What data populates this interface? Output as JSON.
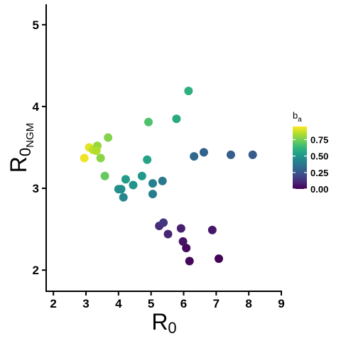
{
  "chart_data": {
    "type": "scatter",
    "xlim": [
      1.8,
      9.0
    ],
    "ylim": [
      1.75,
      5.25
    ],
    "x_ticks": [
      2,
      3,
      4,
      5,
      6,
      7,
      8,
      9
    ],
    "y_ticks": [
      2,
      3,
      4,
      5
    ],
    "x_tick_labels": [
      "2",
      "3",
      "4",
      "5",
      "6",
      "7",
      "8",
      "9"
    ],
    "y_tick_labels": [
      "2",
      "3",
      "4",
      "5"
    ],
    "xlabel": {
      "main": "R",
      "sub": "0"
    },
    "ylabel": {
      "main": "R",
      "sub": "0",
      "subsub": "NGM"
    },
    "grid": false,
    "color_scale": {
      "name": "viridis",
      "stops": [
        "#440154",
        "#482878",
        "#3e4a89",
        "#31688e",
        "#26828e",
        "#1f9e89",
        "#35b779",
        "#6ece58",
        "#b5de2b",
        "#fde725"
      ],
      "range": [
        0,
        0.95
      ]
    },
    "legend": {
      "title": {
        "main": "b",
        "sub": "a"
      },
      "position": "right",
      "ticks": [
        0.0,
        0.25,
        0.5,
        0.75
      ],
      "tick_labels": [
        "0.00",
        "0.25",
        "0.50",
        "0.75"
      ]
    },
    "points": [
      {
        "x": 2.95,
        "y": 3.37,
        "b": 0.93
      },
      {
        "x": 3.1,
        "y": 3.5,
        "b": 0.91
      },
      {
        "x": 3.22,
        "y": 3.47,
        "b": 0.86
      },
      {
        "x": 3.35,
        "y": 3.52,
        "b": 0.8
      },
      {
        "x": 3.32,
        "y": 3.46,
        "b": 0.84
      },
      {
        "x": 3.45,
        "y": 3.37,
        "b": 0.78
      },
      {
        "x": 3.58,
        "y": 3.15,
        "b": 0.72
      },
      {
        "x": 3.68,
        "y": 3.62,
        "b": 0.77
      },
      {
        "x": 4.0,
        "y": 2.99,
        "b": 0.48
      },
      {
        "x": 4.08,
        "y": 2.99,
        "b": 0.46
      },
      {
        "x": 4.15,
        "y": 2.89,
        "b": 0.44
      },
      {
        "x": 4.22,
        "y": 3.11,
        "b": 0.52
      },
      {
        "x": 4.45,
        "y": 3.04,
        "b": 0.49
      },
      {
        "x": 4.72,
        "y": 3.15,
        "b": 0.51
      },
      {
        "x": 4.88,
        "y": 3.35,
        "b": 0.55
      },
      {
        "x": 4.92,
        "y": 3.81,
        "b": 0.68
      },
      {
        "x": 5.05,
        "y": 3.06,
        "b": 0.42
      },
      {
        "x": 5.05,
        "y": 2.93,
        "b": 0.4
      },
      {
        "x": 5.35,
        "y": 3.09,
        "b": 0.38
      },
      {
        "x": 5.25,
        "y": 2.54,
        "b": 0.12
      },
      {
        "x": 5.38,
        "y": 2.58,
        "b": 0.15
      },
      {
        "x": 5.52,
        "y": 2.44,
        "b": 0.1
      },
      {
        "x": 5.78,
        "y": 3.85,
        "b": 0.58
      },
      {
        "x": 5.92,
        "y": 2.51,
        "b": 0.08
      },
      {
        "x": 5.98,
        "y": 2.35,
        "b": 0.05
      },
      {
        "x": 6.08,
        "y": 2.27,
        "b": 0.03
      },
      {
        "x": 6.18,
        "y": 2.11,
        "b": 0.02
      },
      {
        "x": 6.15,
        "y": 4.19,
        "b": 0.6
      },
      {
        "x": 6.32,
        "y": 3.39,
        "b": 0.32
      },
      {
        "x": 6.62,
        "y": 3.44,
        "b": 0.3
      },
      {
        "x": 6.88,
        "y": 2.49,
        "b": 0.06
      },
      {
        "x": 7.08,
        "y": 2.14,
        "b": 0.01
      },
      {
        "x": 7.45,
        "y": 3.41,
        "b": 0.28
      },
      {
        "x": 8.12,
        "y": 3.41,
        "b": 0.27
      }
    ]
  }
}
